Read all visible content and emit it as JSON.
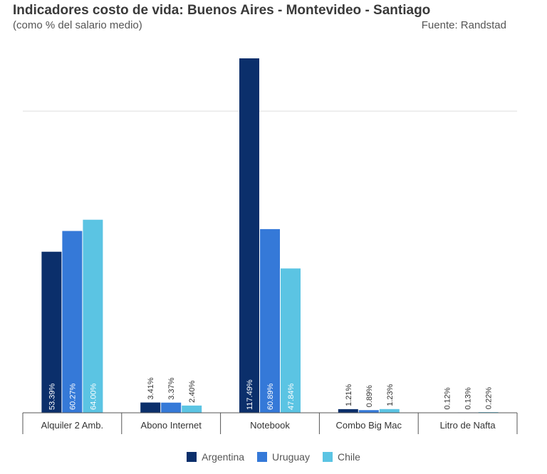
{
  "header": {
    "title": "Indicadores costo de vida: Buenos Aires - Montevideo - Santiago",
    "subtitle": "(como % del salario medio)",
    "source": "Fuente: Randstad"
  },
  "chart_data": {
    "type": "bar",
    "title": "Indicadores costo de vida: Buenos Aires - Montevideo - Santiago",
    "subtitle": "(como % del salario medio)",
    "categories": [
      "Alquiler 2 Amb.",
      "Abono Internet",
      "Notebook",
      "Combo Big Mac",
      "Litro de Nafta"
    ],
    "series": [
      {
        "name": "Argentina",
        "color": "#0b2f6b",
        "values": [
          53.39,
          3.41,
          117.49,
          1.21,
          0.12
        ],
        "labels": [
          "53.39%",
          "3.41%",
          "117.49%",
          "1.21%",
          "0.12%"
        ]
      },
      {
        "name": "Uruguay",
        "color": "#3579d8",
        "values": [
          60.27,
          3.37,
          60.89,
          0.89,
          0.13
        ],
        "labels": [
          "60.27%",
          "3.37%",
          "60.89%",
          "0.89%",
          "0.13%"
        ]
      },
      {
        "name": "Chile",
        "color": "#5bc4e3",
        "values": [
          64.0,
          2.4,
          47.84,
          1.23,
          0.22
        ],
        "labels": [
          "64.00%",
          "2.40%",
          "47.84%",
          "1.23%",
          "0.22%"
        ]
      }
    ],
    "ylim": [
      0,
      117.49
    ],
    "gridlines": [
      100
    ],
    "grid": true,
    "legend_position": "bottom-center",
    "xlabel": "",
    "ylabel": ""
  }
}
